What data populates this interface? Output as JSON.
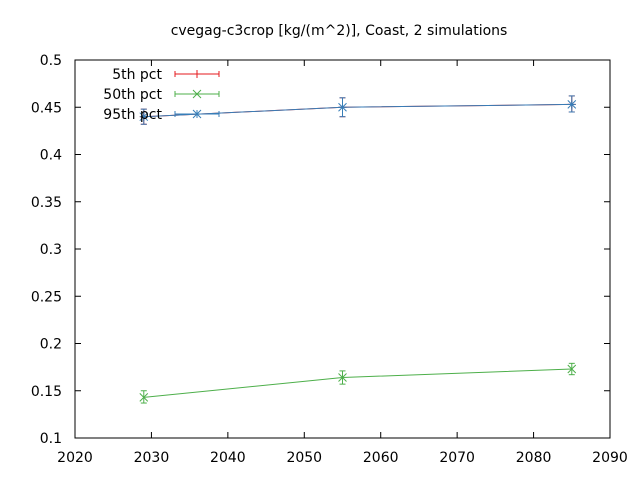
{
  "chart_data": {
    "type": "line",
    "title": "cvegag-c3crop [kg/(m^2)], Coast, 2 simulations",
    "xlabel": "",
    "ylabel": "",
    "xlim": [
      2020,
      2090
    ],
    "ylim": [
      0.1,
      0.5
    ],
    "xticks": [
      "2020",
      "2030",
      "2040",
      "2050",
      "2060",
      "2070",
      "2080",
      "2090"
    ],
    "yticks": [
      "0.1",
      "0.15",
      "0.2",
      "0.25",
      "0.3",
      "0.35",
      "0.4",
      "0.45",
      "0.5"
    ],
    "grid": false,
    "legend_position": "top-left",
    "series": [
      {
        "name": "5th pct",
        "color": "#e41a1c",
        "marker": "plus",
        "points": [
          {
            "x": 2029,
            "y": 0.44,
            "lo": 0.432,
            "hi": 0.448
          },
          {
            "x": 2055,
            "y": 0.45,
            "lo": 0.44,
            "hi": 0.46
          },
          {
            "x": 2085,
            "y": 0.453,
            "lo": 0.445,
            "hi": 0.462
          }
        ]
      },
      {
        "name": "50th pct",
        "color": "#4daf4a",
        "marker": "x",
        "points": [
          {
            "x": 2029,
            "y": 0.143,
            "lo": 0.137,
            "hi": 0.15
          },
          {
            "x": 2055,
            "y": 0.164,
            "lo": 0.157,
            "hi": 0.171
          },
          {
            "x": 2085,
            "y": 0.173,
            "lo": 0.167,
            "hi": 0.179
          }
        ]
      },
      {
        "name": "95th pct",
        "color": "#377eb8",
        "marker": "star",
        "points": [
          {
            "x": 2029,
            "y": 0.44,
            "lo": 0.432,
            "hi": 0.448
          },
          {
            "x": 2055,
            "y": 0.45,
            "lo": 0.44,
            "hi": 0.46
          },
          {
            "x": 2085,
            "y": 0.453,
            "lo": 0.445,
            "hi": 0.462
          }
        ]
      }
    ]
  }
}
